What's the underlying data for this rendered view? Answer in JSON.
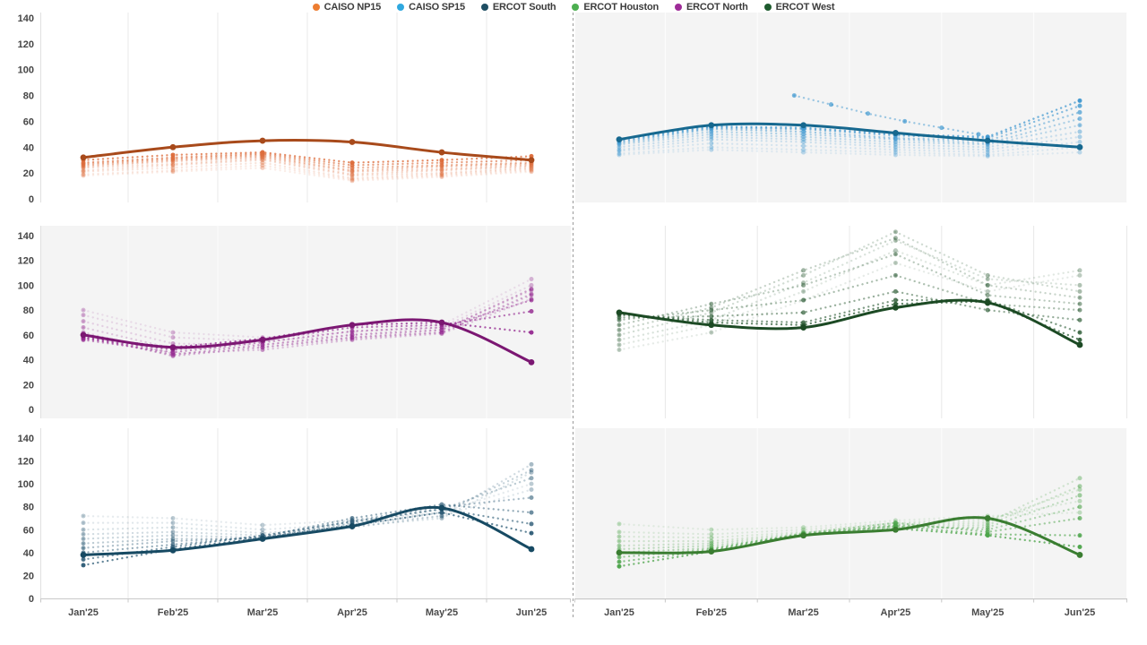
{
  "legend": {
    "items": [
      {
        "label": "CAISO NP15",
        "color": "#ED7D31"
      },
      {
        "label": "CAISO SP15",
        "color": "#2FA8DF"
      },
      {
        "label": "ERCOT South",
        "color": "#1F4E63"
      },
      {
        "label": "ERCOT Houston",
        "color": "#4CAF50"
      },
      {
        "label": "ERCOT North",
        "color": "#9E2B98"
      },
      {
        "label": "ERCOT West",
        "color": "#1E5B2E"
      }
    ]
  },
  "colors": {
    "panel_bg_gray": "#f4f4f4",
    "grid_on_white": "#e8e8e8",
    "grid_on_gray": "#fdfdfd",
    "axis_edge": "#e0e0e0",
    "axis_line": "#c8c8c8",
    "divider": "#9b9b9b"
  },
  "chart_data": {
    "type": "line",
    "title": "",
    "xlabel": "",
    "ylabel": "",
    "ylim": [
      0,
      140
    ],
    "y_ticks": [
      0,
      20,
      40,
      60,
      80,
      100,
      120,
      140
    ],
    "x": [
      "Jan'25",
      "Feb'25",
      "Mar'25",
      "Apr'25",
      "May'25",
      "Jun'25"
    ],
    "legend_position": "top-center",
    "grid": "vertical-only",
    "panels": [
      {
        "name": "CAISO NP15",
        "row": 0,
        "col": 0,
        "bg": "white",
        "line_color": "#A84A1B",
        "scatter_color": "#DC6B3A",
        "main": [
          32,
          40,
          45,
          44,
          36,
          30
        ],
        "history": [
          {
            "o": 0.12,
            "v": [
              18,
              21,
              24,
              14,
              17,
              21
            ]
          },
          {
            "o": 0.15,
            "v": [
              19,
              22,
              26,
              15,
              18,
              22
            ]
          },
          {
            "o": 0.18,
            "v": [
              21,
              24,
              28,
              16,
              19,
              23
            ]
          },
          {
            "o": 0.22,
            "v": [
              22,
              26,
              30,
              18,
              20,
              24
            ]
          },
          {
            "o": 0.26,
            "v": [
              24,
              27,
              31,
              19,
              22,
              25
            ]
          },
          {
            "o": 0.32,
            "v": [
              25,
              29,
              32,
              21,
              23,
              26
            ]
          },
          {
            "o": 0.4,
            "v": [
              26,
              30,
              33,
              22,
              25,
              27
            ]
          },
          {
            "o": 0.5,
            "v": [
              27,
              31,
              34,
              24,
              26,
              28
            ]
          },
          {
            "o": 0.62,
            "v": [
              28,
              32,
              35,
              26,
              28,
              30
            ]
          },
          {
            "o": 0.75,
            "v": [
              30,
              34,
              36,
              28,
              30,
              33
            ]
          }
        ]
      },
      {
        "name": "CAISO SP15",
        "row": 0,
        "col": 1,
        "bg": "gray",
        "line_color": "#16688F",
        "scatter_color": "#4098D0",
        "main": [
          46,
          57,
          57,
          51,
          45,
          40
        ],
        "history": [
          {
            "o": 0.12,
            "v": [
              34,
              38,
              36,
              34,
              33,
              36
            ]
          },
          {
            "o": 0.15,
            "v": [
              35,
              40,
              38,
              36,
              34,
              40
            ]
          },
          {
            "o": 0.18,
            "v": [
              37,
              43,
              41,
              38,
              36,
              44
            ]
          },
          {
            "o": 0.22,
            "v": [
              38,
              46,
              44,
              40,
              38,
              48
            ]
          },
          {
            "o": 0.26,
            "v": [
              40,
              48,
              46,
              42,
              40,
              52
            ]
          },
          {
            "o": 0.32,
            "v": [
              42,
              50,
              48,
              44,
              42,
              57
            ]
          },
          {
            "o": 0.4,
            "v": [
              43,
              52,
              50,
              46,
              43,
              62
            ]
          },
          {
            "o": 0.5,
            "v": [
              44,
              54,
              52,
              47,
              45,
              67
            ]
          },
          {
            "o": 0.62,
            "v": [
              45,
              55,
              54,
              49,
              47,
              72
            ]
          },
          {
            "o": 0.75,
            "v": [
              46,
              56,
              55,
              50,
              48,
              76
            ]
          },
          {
            "o": 0.5,
            "xs": [
              1.9,
              2.3,
              2.7,
              3.1,
              3.5,
              3.9
            ],
            "v": [
              80,
              73,
              66,
              60,
              55,
              50
            ]
          }
        ]
      },
      {
        "name": "ERCOT North",
        "row": 1,
        "col": 0,
        "bg": "gray",
        "line_color": "#7B1772",
        "scatter_color": "#93278F",
        "main": [
          60,
          50,
          56,
          68,
          70,
          38
        ],
        "history": [
          {
            "o": 0.12,
            "v": [
              80,
              62,
              58,
              62,
              68,
              105
            ]
          },
          {
            "o": 0.15,
            "v": [
              76,
              58,
              55,
              60,
              66,
              100
            ]
          },
          {
            "o": 0.18,
            "v": [
              71,
              53,
              52,
              58,
              64,
              96
            ]
          },
          {
            "o": 0.22,
            "v": [
              66,
              49,
              50,
              57,
              62,
              92
            ]
          },
          {
            "o": 0.26,
            "v": [
              62,
              45,
              48,
              56,
              61,
              89
            ]
          },
          {
            "o": 0.32,
            "v": [
              60,
              43,
              50,
              58,
              62,
              93
            ]
          },
          {
            "o": 0.4,
            "v": [
              58,
              44,
              52,
              60,
              64,
              97
            ]
          },
          {
            "o": 0.5,
            "v": [
              56,
              46,
              54,
              63,
              66,
              88
            ]
          },
          {
            "o": 0.62,
            "v": [
              57,
              48,
              56,
              66,
              68,
              79
            ]
          },
          {
            "o": 0.75,
            "v": [
              58,
              50,
              57,
              68,
              70,
              62
            ]
          }
        ]
      },
      {
        "name": "ERCOT West",
        "row": 1,
        "col": 1,
        "bg": "white",
        "line_color": "#1C4A24",
        "scatter_color": "#2F5E38",
        "main": [
          78,
          68,
          66,
          82,
          86,
          52
        ],
        "history": [
          {
            "o": 0.12,
            "v": [
              48,
              62,
              88,
              118,
              95,
              108
            ]
          },
          {
            "o": 0.15,
            "v": [
              52,
              68,
              95,
              128,
              100,
              112
            ]
          },
          {
            "o": 0.18,
            "v": [
              56,
              72,
              102,
              136,
              105,
              100
            ]
          },
          {
            "o": 0.22,
            "v": [
              60,
              78,
              108,
              143,
              108,
              95
            ]
          },
          {
            "o": 0.26,
            "v": [
              64,
              82,
              112,
              138,
              100,
              90
            ]
          },
          {
            "o": 0.32,
            "v": [
              68,
              85,
              100,
              125,
              92,
              85
            ]
          },
          {
            "o": 0.4,
            "v": [
              72,
              80,
              88,
              108,
              85,
              80
            ]
          },
          {
            "o": 0.5,
            "v": [
              74,
              75,
              78,
              95,
              80,
              72
            ]
          },
          {
            "o": 0.62,
            "v": [
              76,
              72,
              70,
              88,
              88,
              62
            ]
          },
          {
            "o": 0.75,
            "v": [
              77,
              70,
              68,
              85,
              87,
              56
            ]
          }
        ]
      },
      {
        "name": "ERCOT South",
        "row": 2,
        "col": 0,
        "bg": "white",
        "line_color": "#174A63",
        "scatter_color": "#2F5D77",
        "main": [
          38,
          42,
          52,
          63,
          79,
          43
        ],
        "history": [
          {
            "o": 0.12,
            "v": [
              72,
              70,
              64,
              68,
              75,
              100
            ]
          },
          {
            "o": 0.15,
            "v": [
              66,
              66,
              60,
              65,
              72,
              95
            ]
          },
          {
            "o": 0.18,
            "v": [
              60,
              62,
              57,
              63,
              70,
              110
            ]
          },
          {
            "o": 0.22,
            "v": [
              56,
              58,
              55,
              62,
              72,
              117
            ]
          },
          {
            "o": 0.26,
            "v": [
              52,
              55,
              53,
              64,
              75,
              112
            ]
          },
          {
            "o": 0.32,
            "v": [
              48,
              52,
              52,
              66,
              78,
              105
            ]
          },
          {
            "o": 0.4,
            "v": [
              44,
              50,
              53,
              68,
              80,
              88
            ]
          },
          {
            "o": 0.5,
            "v": [
              40,
              47,
              54,
              70,
              82,
              75
            ]
          },
          {
            "o": 0.62,
            "v": [
              34,
              45,
              55,
              67,
              78,
              65
            ]
          },
          {
            "o": 0.75,
            "v": [
              29,
              43,
              53,
              64,
              75,
              57
            ]
          }
        ]
      },
      {
        "name": "ERCOT Houston",
        "row": 2,
        "col": 1,
        "bg": "gray",
        "line_color": "#3A7D31",
        "scatter_color": "#4CA44A",
        "main": [
          40,
          41,
          55,
          60,
          70,
          38
        ],
        "history": [
          {
            "o": 0.12,
            "v": [
              65,
              60,
              62,
              68,
              72,
              75
            ]
          },
          {
            "o": 0.15,
            "v": [
              58,
              56,
              60,
              66,
              70,
              85
            ]
          },
          {
            "o": 0.18,
            "v": [
              54,
              53,
              58,
              65,
              68,
              95
            ]
          },
          {
            "o": 0.22,
            "v": [
              50,
              50,
              57,
              64,
              66,
              105
            ]
          },
          {
            "o": 0.26,
            "v": [
              46,
              48,
              56,
              63,
              64,
              98
            ]
          },
          {
            "o": 0.32,
            "v": [
              43,
              46,
              55,
              62,
              62,
              90
            ]
          },
          {
            "o": 0.4,
            "v": [
              40,
              44,
              56,
              64,
              60,
              80
            ]
          },
          {
            "o": 0.5,
            "v": [
              36,
              43,
              57,
              66,
              58,
              70
            ]
          },
          {
            "o": 0.62,
            "v": [
              32,
              42,
              56,
              63,
              56,
              55
            ]
          },
          {
            "o": 0.75,
            "v": [
              28,
              41,
              55,
              61,
              55,
              45
            ]
          }
        ]
      }
    ]
  }
}
